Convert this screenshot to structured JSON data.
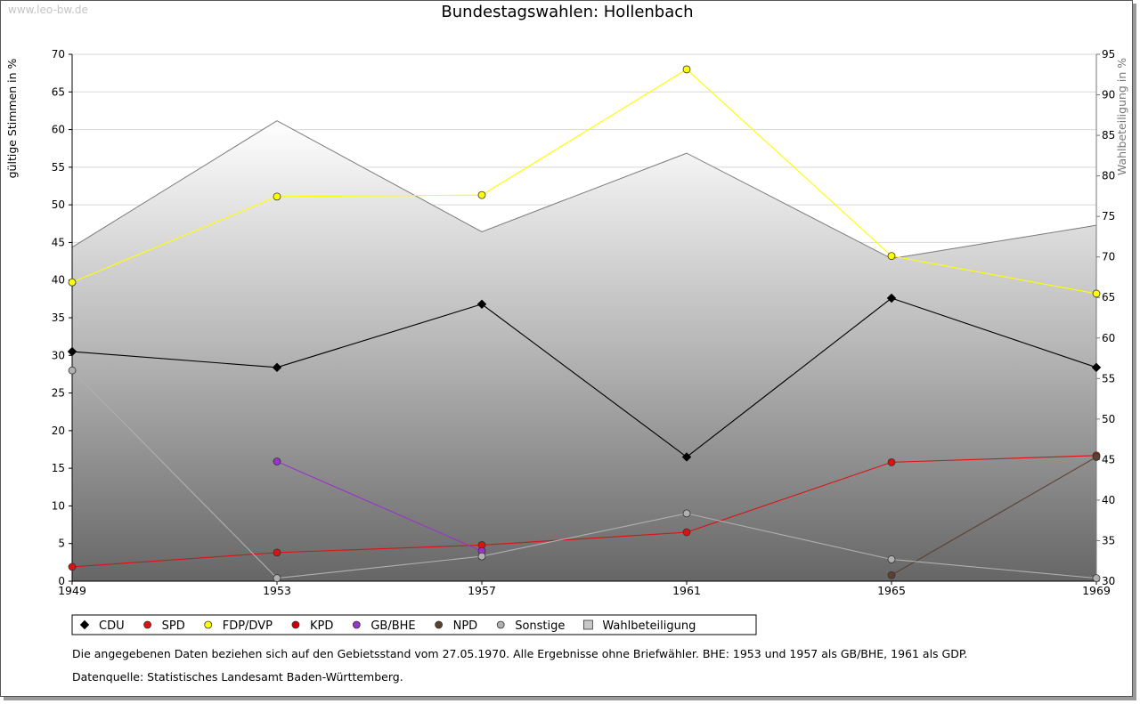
{
  "watermark": "www.leo-bw.de",
  "footnote": "Die angegebenen Daten beziehen sich auf den Gebietsstand vom 27.05.1970. Alle Ergebnisse ohne Briefwähler. BHE: 1953 und 1957 als GB/BHE, 1961 als GDP.",
  "source": "Datenquelle: Statistisches Landesamt Baden-Württemberg.",
  "colors": {
    "CDU": "#000000",
    "SPD": "#dd1111",
    "FDP/DVP": "#ffff00",
    "KPD": "#cc0000",
    "GB/BHE": "#9933cc",
    "NPD": "#5c4033",
    "Sonstige": "#b0b0b0",
    "Wahlbeteiligung": "#c8c8c8"
  },
  "chart_data": {
    "type": "line",
    "title": "Bundestagswahlen: Hollenbach",
    "x": [
      "1949",
      "1953",
      "1957",
      "1961",
      "1965",
      "1969"
    ],
    "ylabel": "gültige Stimmen in %",
    "y2label": "Wahlbeteiligung in %",
    "ylim": [
      0,
      70
    ],
    "y2lim": [
      30,
      95
    ],
    "yticks": [
      "0",
      "5",
      "10",
      "15",
      "20",
      "25",
      "30",
      "35",
      "40",
      "45",
      "50",
      "55",
      "60",
      "65",
      "70"
    ],
    "y2ticks": [
      "30",
      "35",
      "40",
      "45",
      "50",
      "55",
      "60",
      "65",
      "70",
      "75",
      "80",
      "85",
      "90",
      "95"
    ],
    "grid": true,
    "legend_position": "bottom",
    "series": [
      {
        "name": "CDU",
        "values": [
          30.5,
          28.4,
          36.8,
          16.5,
          37.6,
          28.4
        ]
      },
      {
        "name": "SPD",
        "values": [
          1.9,
          3.8,
          4.8,
          6.5,
          15.8,
          16.7
        ]
      },
      {
        "name": "FDP/DVP",
        "values": [
          39.7,
          51.1,
          51.3,
          68.0,
          43.2,
          38.2
        ]
      },
      {
        "name": "KPD",
        "values": [
          null,
          null,
          null,
          null,
          null,
          null
        ]
      },
      {
        "name": "GB/BHE",
        "values": [
          null,
          15.9,
          4.0,
          null,
          null,
          null
        ]
      },
      {
        "name": "NPD",
        "values": [
          null,
          null,
          null,
          null,
          0.8,
          16.5
        ]
      },
      {
        "name": "Sonstige",
        "values": [
          28.0,
          0.4,
          3.3,
          9.0,
          2.9,
          0.4
        ]
      }
    ],
    "area_series": {
      "name": "Wahlbeteiligung",
      "axis": "right",
      "values": [
        71.2,
        86.8,
        73.1,
        82.8,
        69.8,
        73.9
      ]
    },
    "legend": [
      "CDU",
      "SPD",
      "FDP/DVP",
      "KPD",
      "GB/BHE",
      "NPD",
      "Sonstige",
      "Wahlbeteiligung"
    ]
  }
}
